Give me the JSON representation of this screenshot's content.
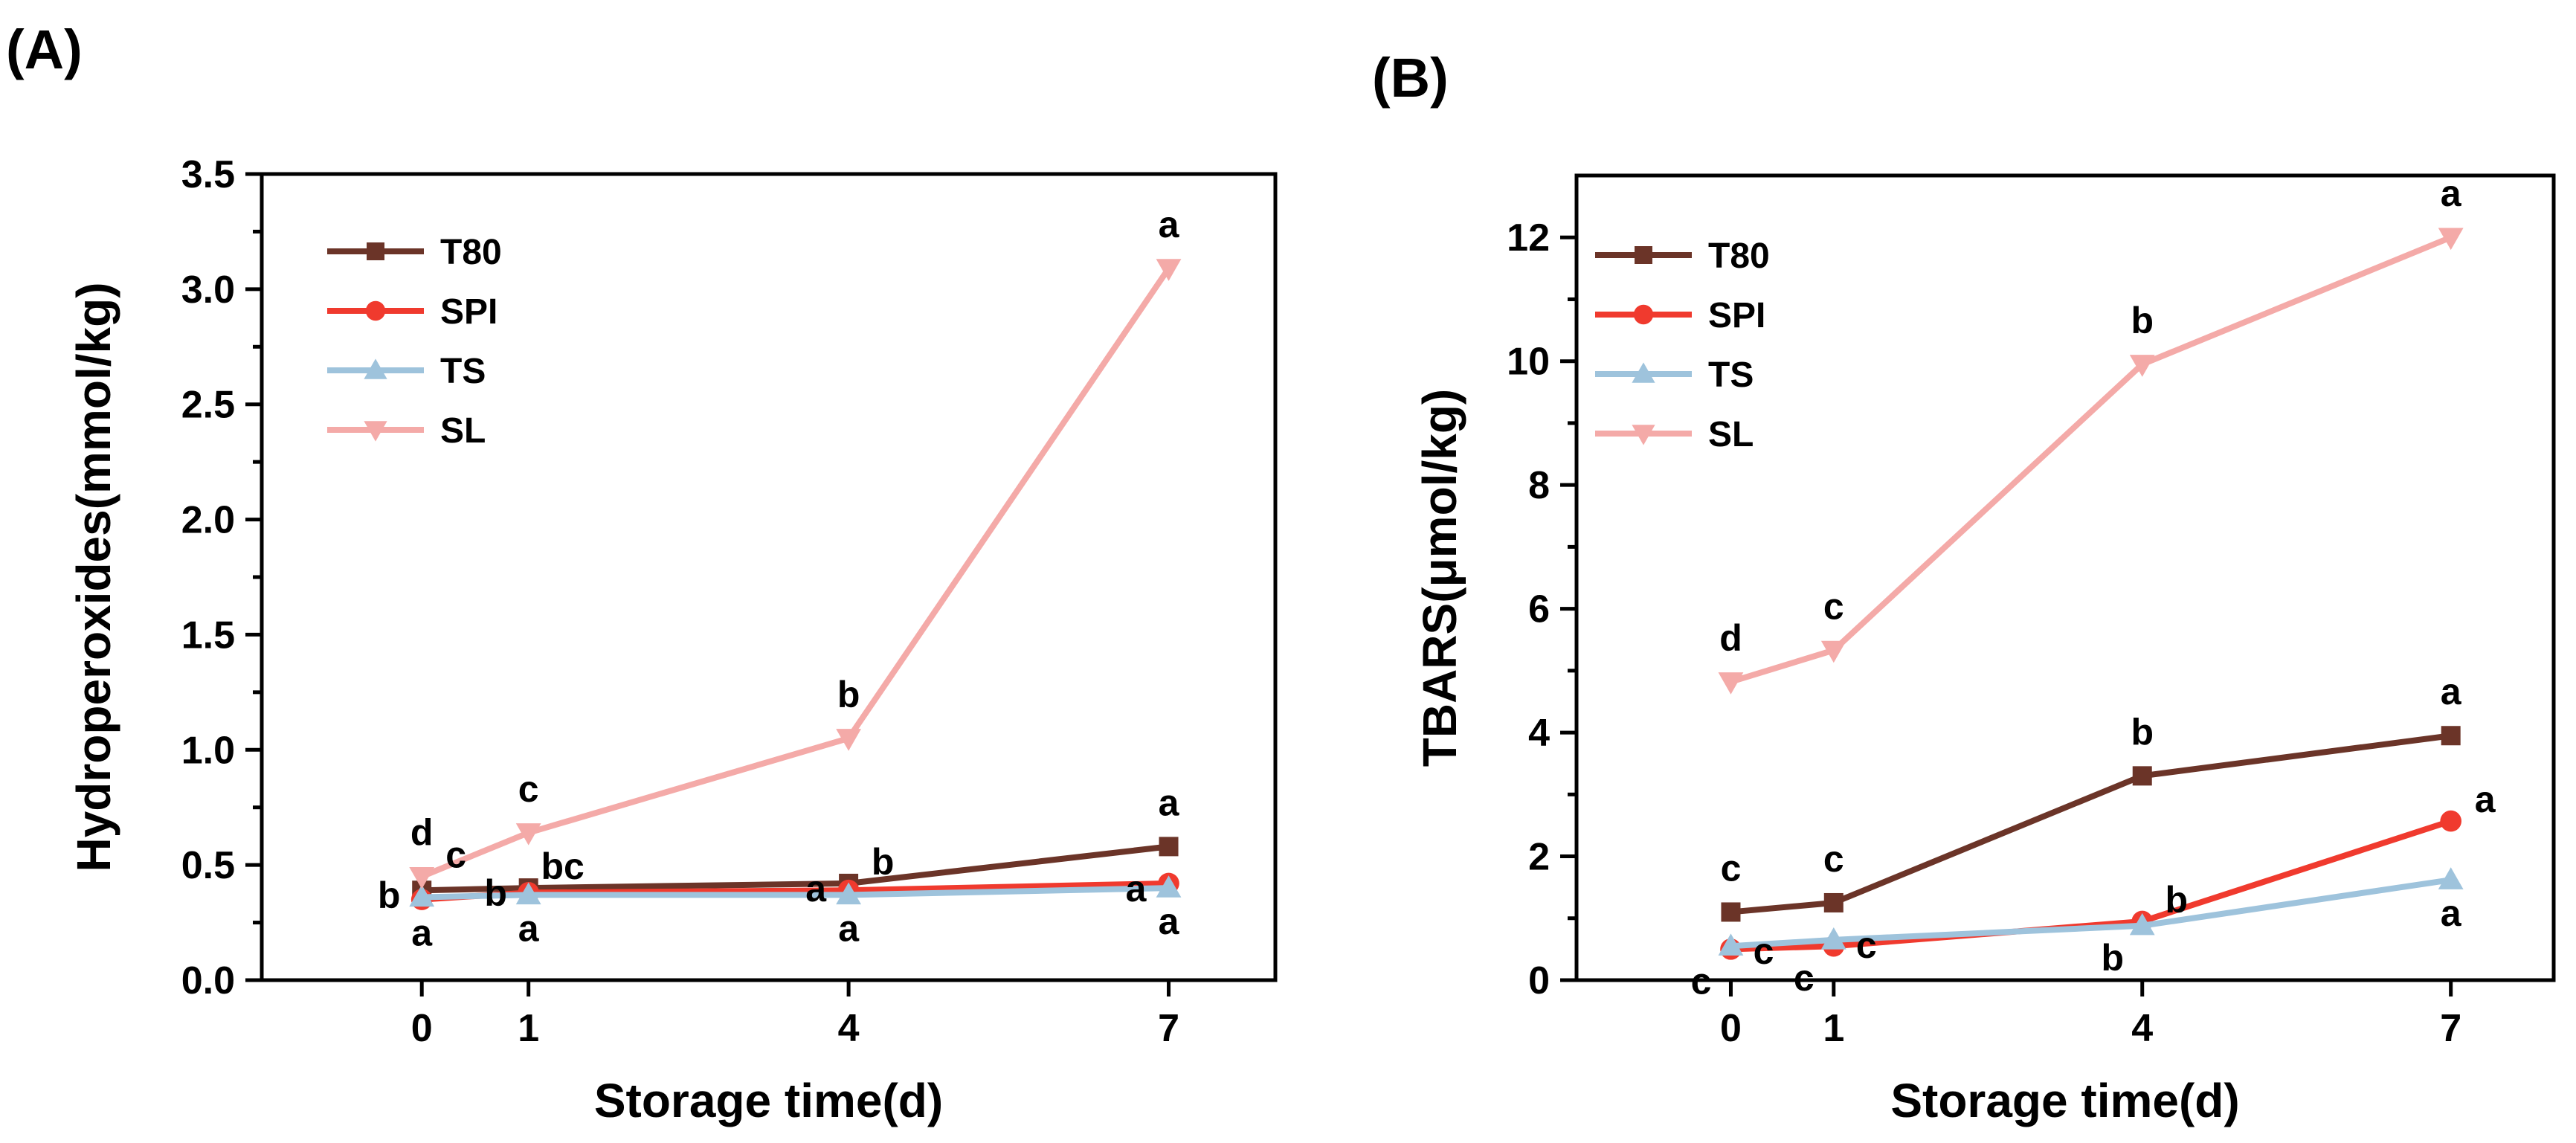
{
  "chart_data": [
    {
      "type": "line",
      "panel_label": "(A)",
      "xlabel": "Storage time(d)",
      "ylabel": "Hydroperoxides(mmol/kg)",
      "x": [
        0,
        1,
        4,
        7
      ],
      "xlim": [
        -1.5,
        8
      ],
      "ylim": [
        0,
        3.5
      ],
      "xticks": [
        0,
        1,
        4,
        7
      ],
      "yticks": [
        0.0,
        0.5,
        1.0,
        1.5,
        2.0,
        2.5,
        3.0,
        3.5
      ],
      "ytick_labels": [
        "0.0",
        "0.5",
        "1.0",
        "1.5",
        "2.0",
        "2.5",
        "3.0",
        "3.5"
      ],
      "legend_position": "top-left",
      "series": [
        {
          "name": "T80",
          "color": "#6B3428",
          "marker": "square",
          "values": [
            0.39,
            0.4,
            0.42,
            0.58
          ]
        },
        {
          "name": "SPI",
          "color": "#F03A2E",
          "marker": "circle",
          "values": [
            0.35,
            0.38,
            0.39,
            0.42
          ]
        },
        {
          "name": "TS",
          "color": "#9EC3DC",
          "marker": "triangle-up",
          "values": [
            0.36,
            0.37,
            0.37,
            0.4
          ]
        },
        {
          "name": "SL",
          "color": "#F4AAA8",
          "marker": "triangle-down",
          "values": [
            0.45,
            0.64,
            1.05,
            3.09
          ]
        }
      ],
      "annotations": [
        {
          "text": "a",
          "x": 7,
          "y": 3.09,
          "placement": "above"
        },
        {
          "text": "b",
          "x": 4,
          "y": 1.05,
          "placement": "above"
        },
        {
          "text": "c",
          "x": 1,
          "y": 0.64,
          "placement": "above"
        },
        {
          "text": "d",
          "x": 0,
          "y": 0.45,
          "placement": "above"
        },
        {
          "text": "c",
          "x": 0,
          "y": 0.45,
          "placement": "upper-right"
        },
        {
          "text": "b",
          "x": 0,
          "y": 0.39,
          "placement": "left"
        },
        {
          "text": "a",
          "x": 0,
          "y": 0.35,
          "placement": "below"
        },
        {
          "text": "b",
          "x": 1,
          "y": 0.4,
          "placement": "left"
        },
        {
          "text": "bc",
          "x": 1,
          "y": 0.4,
          "placement": "upper-right"
        },
        {
          "text": "a",
          "x": 1,
          "y": 0.37,
          "placement": "below"
        },
        {
          "text": "a",
          "x": 4,
          "y": 0.42,
          "placement": "left"
        },
        {
          "text": "b",
          "x": 4,
          "y": 0.42,
          "placement": "upper-right"
        },
        {
          "text": "a",
          "x": 4,
          "y": 0.37,
          "placement": "below"
        },
        {
          "text": "a",
          "x": 7,
          "y": 0.58,
          "placement": "above"
        },
        {
          "text": "a",
          "x": 7,
          "y": 0.42,
          "placement": "left"
        },
        {
          "text": "a",
          "x": 7,
          "y": 0.4,
          "placement": "below"
        }
      ]
    },
    {
      "type": "line",
      "panel_label": "(B)",
      "xlabel": "Storage time(d)",
      "ylabel": "TBARS(μmol/kg)",
      "x": [
        0,
        1,
        4,
        7
      ],
      "xlim": [
        -1.5,
        8
      ],
      "ylim": [
        0,
        13
      ],
      "xticks": [
        0,
        1,
        4,
        7
      ],
      "yticks": [
        0,
        2,
        4,
        6,
        8,
        10,
        12
      ],
      "ytick_labels": [
        "0",
        "2",
        "4",
        "6",
        "8",
        "10",
        "12"
      ],
      "legend_position": "top-left",
      "series": [
        {
          "name": "T80",
          "color": "#6B3428",
          "marker": "square",
          "values": [
            1.1,
            1.25,
            3.3,
            3.95
          ]
        },
        {
          "name": "SPI",
          "color": "#F03A2E",
          "marker": "circle",
          "values": [
            0.5,
            0.55,
            0.95,
            2.57
          ]
        },
        {
          "name": "TS",
          "color": "#9EC3DC",
          "marker": "triangle-up",
          "values": [
            0.55,
            0.65,
            0.88,
            1.62
          ]
        },
        {
          "name": "SL",
          "color": "#F4AAA8",
          "marker": "triangle-down",
          "values": [
            4.82,
            5.33,
            9.95,
            12.0
          ]
        }
      ],
      "annotations": [
        {
          "text": "a",
          "x": 7,
          "y": 12.0,
          "placement": "above"
        },
        {
          "text": "b",
          "x": 4,
          "y": 9.95,
          "placement": "above"
        },
        {
          "text": "c",
          "x": 1,
          "y": 5.33,
          "placement": "above"
        },
        {
          "text": "d",
          "x": 0,
          "y": 4.82,
          "placement": "above"
        },
        {
          "text": "a",
          "x": 7,
          "y": 3.95,
          "placement": "above"
        },
        {
          "text": "b",
          "x": 4,
          "y": 3.3,
          "placement": "above"
        },
        {
          "text": "c",
          "x": 1,
          "y": 1.25,
          "placement": "above"
        },
        {
          "text": "c",
          "x": 0,
          "y": 1.1,
          "placement": "above"
        },
        {
          "text": "a",
          "x": 7,
          "y": 2.57,
          "placement": "upper-right"
        },
        {
          "text": "b",
          "x": 4,
          "y": 0.95,
          "placement": "upper-right"
        },
        {
          "text": "c",
          "x": 1,
          "y": 0.65,
          "placement": "right"
        },
        {
          "text": "c",
          "x": 0,
          "y": 0.55,
          "placement": "right"
        },
        {
          "text": "c",
          "x": 0,
          "y": 0.5,
          "placement": "lower-left"
        },
        {
          "text": "c",
          "x": 1,
          "y": 0.55,
          "placement": "lower-left"
        },
        {
          "text": "b",
          "x": 4,
          "y": 0.88,
          "placement": "lower-left"
        },
        {
          "text": "a",
          "x": 7,
          "y": 1.62,
          "placement": "below"
        }
      ]
    }
  ]
}
